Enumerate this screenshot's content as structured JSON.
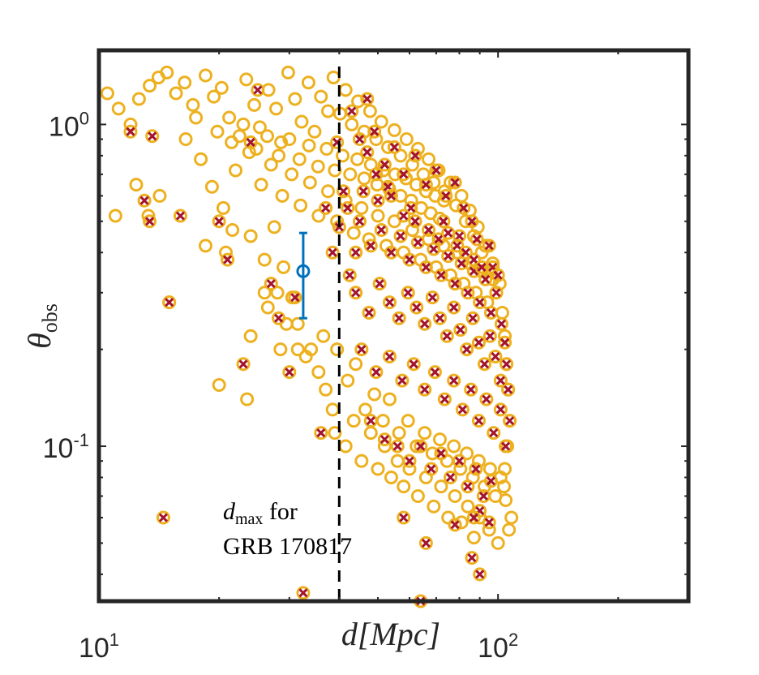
{
  "chart_data": {
    "type": "scatter",
    "xscale": "log",
    "yscale": "log",
    "xlim": [
      10,
      300
    ],
    "ylim": [
      0.033,
      1.7
    ],
    "x_ticks": [
      {
        "value": 10,
        "base": "10",
        "exp": "1"
      },
      {
        "value": 100,
        "base": "10",
        "exp": "2"
      }
    ],
    "y_ticks": [
      {
        "value": 0.1,
        "base": "10",
        "exp": "-1"
      },
      {
        "value": 1,
        "base": "10",
        "exp": "0"
      }
    ],
    "xlabel": "d[Mpc]",
    "ylabel": {
      "main": "θ",
      "sub": "obs"
    },
    "dmax_line": 40,
    "annotation": {
      "line1_var": "d",
      "line1_sub": "max",
      "line1_rest": " for",
      "line2": "GRB 170817"
    },
    "observed_point": {
      "x": 32.5,
      "y": 0.35,
      "ylow": 0.25,
      "yhigh": 0.46
    },
    "series": [
      {
        "name": "all simulated events",
        "marker": "open-circle",
        "color": "#EDB120"
      },
      {
        "name": "detected events",
        "marker": "x",
        "color": "#A2142F"
      }
    ],
    "open_points": [
      [
        10.5,
        1.25
      ],
      [
        11.2,
        1.12
      ],
      [
        12.0,
        1.0
      ],
      [
        12.6,
        1.2
      ],
      [
        13.4,
        1.32
      ],
      [
        14.1,
        1.4
      ],
      [
        14.8,
        1.45
      ],
      [
        15.6,
        1.25
      ],
      [
        16.4,
        1.35
      ],
      [
        17.2,
        1.15
      ],
      [
        18.5,
        1.42
      ],
      [
        19.4,
        1.22
      ],
      [
        20.3,
        1.3
      ],
      [
        21.2,
        1.05
      ],
      [
        22.5,
        0.92
      ],
      [
        23.4,
        1.38
      ],
      [
        24.5,
        1.15
      ],
      [
        25.3,
        0.98
      ],
      [
        26.6,
        1.28
      ],
      [
        27.8,
        1.12
      ],
      [
        28.6,
        0.88
      ],
      [
        29.8,
        1.45
      ],
      [
        31.0,
        1.2
      ],
      [
        32.2,
        1.02
      ],
      [
        33.5,
        1.35
      ],
      [
        34.7,
        0.95
      ],
      [
        36.0,
        1.22
      ],
      [
        37.5,
        1.1
      ],
      [
        38.7,
        1.4
      ],
      [
        40.2,
        1.08
      ],
      [
        41.5,
        1.28
      ],
      [
        43.0,
        1.0
      ],
      [
        44.6,
        1.18
      ],
      [
        46.2,
        0.95
      ],
      [
        47.8,
        1.1
      ],
      [
        49.5,
        0.9
      ],
      [
        51.0,
        1.02
      ],
      [
        53.0,
        0.85
      ],
      [
        55.0,
        0.96
      ],
      [
        57.0,
        0.8
      ],
      [
        59.0,
        0.9
      ],
      [
        61.0,
        0.75
      ],
      [
        63.0,
        0.84
      ],
      [
        65.0,
        0.7
      ],
      [
        67.0,
        0.78
      ],
      [
        69.0,
        0.66
      ],
      [
        71.0,
        0.72
      ],
      [
        73.5,
        0.62
      ],
      [
        76.0,
        0.66
      ],
      [
        78.5,
        0.56
      ],
      [
        81.0,
        0.6
      ],
      [
        83.0,
        0.5
      ],
      [
        85.0,
        0.54
      ],
      [
        87.0,
        0.45
      ],
      [
        89.0,
        0.48
      ],
      [
        91.0,
        0.4
      ],
      [
        93.0,
        0.42
      ],
      [
        95.0,
        0.35
      ],
      [
        97.0,
        0.37
      ],
      [
        99.0,
        0.3
      ],
      [
        101.0,
        0.32
      ],
      [
        102.5,
        0.26
      ],
      [
        104.0,
        0.22
      ],
      [
        105.0,
        0.18
      ],
      [
        106.0,
        0.15
      ],
      [
        107.0,
        0.12
      ],
      [
        105.5,
        0.1
      ],
      [
        104.0,
        0.085
      ],
      [
        103.5,
        0.075
      ],
      [
        104.5,
        0.068
      ],
      [
        106.5,
        0.055
      ],
      [
        108.0,
        0.06
      ],
      [
        22.0,
        0.72
      ],
      [
        23.8,
        0.82
      ],
      [
        25.5,
        0.65
      ],
      [
        27.0,
        0.75
      ],
      [
        28.8,
        0.6
      ],
      [
        30.4,
        0.7
      ],
      [
        32.0,
        0.56
      ],
      [
        33.8,
        0.66
      ],
      [
        35.5,
        0.52
      ],
      [
        37.5,
        0.62
      ],
      [
        39.5,
        0.5
      ],
      [
        41.5,
        0.58
      ],
      [
        43.5,
        0.46
      ],
      [
        45.5,
        0.55
      ],
      [
        47.5,
        0.44
      ],
      [
        50.0,
        0.52
      ],
      [
        52.5,
        0.42
      ],
      [
        55.0,
        0.5
      ],
      [
        58.0,
        0.4
      ],
      [
        61.0,
        0.47
      ],
      [
        64.0,
        0.38
      ],
      [
        67.0,
        0.44
      ],
      [
        70.0,
        0.36
      ],
      [
        73.0,
        0.42
      ],
      [
        76.0,
        0.34
      ],
      [
        79.0,
        0.4
      ],
      [
        82.0,
        0.32
      ],
      [
        85.0,
        0.37
      ],
      [
        88.0,
        0.3
      ],
      [
        91.0,
        0.35
      ],
      [
        94.0,
        0.28
      ],
      [
        97.0,
        0.33
      ],
      [
        16.5,
        0.9
      ],
      [
        18.0,
        0.78
      ],
      [
        19.2,
        0.64
      ],
      [
        20.5,
        0.55
      ],
      [
        21.6,
        0.47
      ],
      [
        14.2,
        0.6
      ],
      [
        13.3,
        0.52
      ],
      [
        12.4,
        0.65
      ],
      [
        11.0,
        0.52
      ],
      [
        18.5,
        0.42
      ],
      [
        20.8,
        0.4
      ],
      [
        24.0,
        0.45
      ],
      [
        26.0,
        0.38
      ],
      [
        27.5,
        0.48
      ],
      [
        29.0,
        0.36
      ],
      [
        30.5,
        0.29
      ],
      [
        28.0,
        0.3
      ],
      [
        26.5,
        0.27
      ],
      [
        29.5,
        0.24
      ],
      [
        31.5,
        0.2
      ],
      [
        33.0,
        0.19
      ],
      [
        35.5,
        0.17
      ],
      [
        37.0,
        0.15
      ],
      [
        38.5,
        0.13
      ],
      [
        39.0,
        0.11
      ],
      [
        41.5,
        0.1
      ],
      [
        43.5,
        0.12
      ],
      [
        45.5,
        0.09
      ],
      [
        48.0,
        0.11
      ],
      [
        50.0,
        0.085
      ],
      [
        52.0,
        0.1
      ],
      [
        54.0,
        0.08
      ],
      [
        56.0,
        0.09
      ],
      [
        58.0,
        0.075
      ],
      [
        60.0,
        0.085
      ],
      [
        63.0,
        0.07
      ],
      [
        66.0,
        0.08
      ],
      [
        69.0,
        0.065
      ],
      [
        72.0,
        0.075
      ],
      [
        75.0,
        0.06
      ],
      [
        78.0,
        0.07
      ],
      [
        81.0,
        0.058
      ],
      [
        84.0,
        0.065
      ],
      [
        87.0,
        0.052
      ],
      [
        90.0,
        0.06
      ],
      [
        95.0,
        0.055
      ],
      [
        100.0,
        0.05
      ],
      [
        15.0,
        0.28
      ],
      [
        20.0,
        0.155
      ],
      [
        24.0,
        0.22
      ],
      [
        23.5,
        0.14
      ],
      [
        26.0,
        0.3
      ],
      [
        28.5,
        0.2
      ],
      [
        31.5,
        0.24
      ],
      [
        34.0,
        0.2
      ],
      [
        36.5,
        0.22
      ],
      [
        39.5,
        0.2
      ],
      [
        42.0,
        0.16
      ],
      [
        44.0,
        0.18
      ],
      [
        46.5,
        0.13
      ],
      [
        49.0,
        0.145
      ],
      [
        51.5,
        0.12
      ],
      [
        53.5,
        0.14
      ],
      [
        56.5,
        0.11
      ],
      [
        59.5,
        0.12
      ],
      [
        62.5,
        0.1
      ],
      [
        65.5,
        0.11
      ],
      [
        68.5,
        0.095
      ],
      [
        71.5,
        0.105
      ],
      [
        74.5,
        0.09
      ],
      [
        77.5,
        0.1
      ],
      [
        80.5,
        0.085
      ],
      [
        83.5,
        0.095
      ],
      [
        86.5,
        0.08
      ],
      [
        89.5,
        0.09
      ],
      [
        92.5,
        0.075
      ],
      [
        95.5,
        0.085
      ],
      [
        98.5,
        0.07
      ],
      [
        101.5,
        0.08
      ],
      [
        17.5,
        1.05
      ],
      [
        19.8,
        0.95
      ],
      [
        21.5,
        0.88
      ],
      [
        23.0,
        1.0
      ],
      [
        24.8,
        0.84
      ],
      [
        26.4,
        0.92
      ],
      [
        28.2,
        0.8
      ],
      [
        30.0,
        0.9
      ],
      [
        31.8,
        0.78
      ],
      [
        33.6,
        0.86
      ],
      [
        35.4,
        0.74
      ],
      [
        37.2,
        0.84
      ],
      [
        39.0,
        0.72
      ],
      [
        40.8,
        0.8
      ],
      [
        42.6,
        0.7
      ],
      [
        44.4,
        0.78
      ],
      [
        46.2,
        0.68
      ],
      [
        48.0,
        0.75
      ],
      [
        49.8,
        0.65
      ],
      [
        51.6,
        0.72
      ],
      [
        53.4,
        0.63
      ],
      [
        55.2,
        0.7
      ],
      [
        57.0,
        0.6
      ],
      [
        58.8,
        0.68
      ],
      [
        60.6,
        0.58
      ],
      [
        62.4,
        0.65
      ],
      [
        64.2,
        0.55
      ],
      [
        66.0,
        0.62
      ],
      [
        67.8,
        0.53
      ],
      [
        69.6,
        0.6
      ],
      [
        71.4,
        0.51
      ],
      [
        73.2,
        0.58
      ]
    ],
    "x_points": [
      [
        12.0,
        0.95
      ],
      [
        13.0,
        0.58
      ],
      [
        13.4,
        0.5
      ],
      [
        13.6,
        0.92
      ],
      [
        15.0,
        0.28
      ],
      [
        16.0,
        0.52
      ],
      [
        20.0,
        0.5
      ],
      [
        21.0,
        0.38
      ],
      [
        23.0,
        0.18
      ],
      [
        24.0,
        0.88
      ],
      [
        25.0,
        1.28
      ],
      [
        27.0,
        0.32
      ],
      [
        28.2,
        0.25
      ],
      [
        30.0,
        0.17
      ],
      [
        31.0,
        0.29
      ],
      [
        32.5,
        0.035
      ],
      [
        36.0,
        0.11
      ],
      [
        14.5,
        0.06
      ],
      [
        43.0,
        1.1
      ],
      [
        45.0,
        0.9
      ],
      [
        47.0,
        1.2
      ],
      [
        49.0,
        0.95
      ],
      [
        52.0,
        0.75
      ],
      [
        55.0,
        0.85
      ],
      [
        58.0,
        0.7
      ],
      [
        62.0,
        0.8
      ],
      [
        66.0,
        0.65
      ],
      [
        70.0,
        0.72
      ],
      [
        74.0,
        0.6
      ],
      [
        78.0,
        0.66
      ],
      [
        82.0,
        0.55
      ],
      [
        86.0,
        0.5
      ],
      [
        45.0,
        0.5
      ],
      [
        48.0,
        0.42
      ],
      [
        51.0,
        0.47
      ],
      [
        54.0,
        0.4
      ],
      [
        57.0,
        0.45
      ],
      [
        60.0,
        0.38
      ],
      [
        63.0,
        0.43
      ],
      [
        66.0,
        0.36
      ],
      [
        69.0,
        0.41
      ],
      [
        72.0,
        0.34
      ],
      [
        75.0,
        0.39
      ],
      [
        78.0,
        0.32
      ],
      [
        81.0,
        0.37
      ],
      [
        84.0,
        0.3
      ],
      [
        87.0,
        0.35
      ],
      [
        90.0,
        0.28
      ],
      [
        93.0,
        0.33
      ],
      [
        96.0,
        0.26
      ],
      [
        99.0,
        0.3
      ],
      [
        102.0,
        0.24
      ],
      [
        104.0,
        0.21
      ],
      [
        105.0,
        0.18
      ],
      [
        106.0,
        0.15
      ],
      [
        107.0,
        0.12
      ],
      [
        44.0,
        0.3
      ],
      [
        47.5,
        0.26
      ],
      [
        50.5,
        0.32
      ],
      [
        53.5,
        0.28
      ],
      [
        56.5,
        0.25
      ],
      [
        59.5,
        0.3
      ],
      [
        62.5,
        0.27
      ],
      [
        65.5,
        0.24
      ],
      [
        68.5,
        0.29
      ],
      [
        71.5,
        0.25
      ],
      [
        74.5,
        0.22
      ],
      [
        77.5,
        0.27
      ],
      [
        80.5,
        0.23
      ],
      [
        83.5,
        0.2
      ],
      [
        86.5,
        0.25
      ],
      [
        89.5,
        0.21
      ],
      [
        92.5,
        0.18
      ],
      [
        95.5,
        0.22
      ],
      [
        98.5,
        0.19
      ],
      [
        101.5,
        0.16
      ],
      [
        45.5,
        0.2
      ],
      [
        49.5,
        0.17
      ],
      [
        53.5,
        0.19
      ],
      [
        57.5,
        0.16
      ],
      [
        61.5,
        0.18
      ],
      [
        65.5,
        0.15
      ],
      [
        69.5,
        0.17
      ],
      [
        73.5,
        0.14
      ],
      [
        77.5,
        0.16
      ],
      [
        81.5,
        0.13
      ],
      [
        85.5,
        0.15
      ],
      [
        89.5,
        0.12
      ],
      [
        93.5,
        0.14
      ],
      [
        97.5,
        0.11
      ],
      [
        101.5,
        0.13
      ],
      [
        104.5,
        0.1
      ],
      [
        48.0,
        0.12
      ],
      [
        52.0,
        0.105
      ],
      [
        56.0,
        0.1
      ],
      [
        60.0,
        0.09
      ],
      [
        64.0,
        0.1
      ],
      [
        68.0,
        0.085
      ],
      [
        72.0,
        0.095
      ],
      [
        76.0,
        0.08
      ],
      [
        80.0,
        0.09
      ],
      [
        84.0,
        0.075
      ],
      [
        88.0,
        0.085
      ],
      [
        92.0,
        0.07
      ],
      [
        96.0,
        0.078
      ],
      [
        90.0,
        0.063
      ],
      [
        95.0,
        0.058
      ],
      [
        87.0,
        0.06
      ],
      [
        58.0,
        0.06
      ],
      [
        66.0,
        0.05
      ],
      [
        90.0,
        0.04
      ],
      [
        64.0,
        0.033
      ],
      [
        78.0,
        0.057
      ],
      [
        86.0,
        0.045
      ],
      [
        42.0,
        0.55
      ],
      [
        44.0,
        0.4
      ],
      [
        40.0,
        0.48
      ],
      [
        42.5,
        0.34
      ],
      [
        41.0,
        0.62
      ],
      [
        39.5,
        0.88
      ],
      [
        37.0,
        0.55
      ],
      [
        38.5,
        0.4
      ],
      [
        46.0,
        0.62
      ],
      [
        50.0,
        0.58
      ],
      [
        53.0,
        0.64
      ],
      [
        60.5,
        0.55
      ],
      [
        73.0,
        0.5
      ],
      [
        80.0,
        0.45
      ],
      [
        88.5,
        0.44
      ],
      [
        95.0,
        0.42
      ],
      [
        97.0,
        0.36
      ],
      [
        100.0,
        0.34
      ],
      [
        47.0,
        0.82
      ],
      [
        49.5,
        0.7
      ],
      [
        54.0,
        0.6
      ],
      [
        58.0,
        0.52
      ],
      [
        62.0,
        0.5
      ],
      [
        67.0,
        0.47
      ],
      [
        71.0,
        0.44
      ],
      [
        75.0,
        0.46
      ],
      [
        79.0,
        0.42
      ],
      [
        83.0,
        0.4
      ],
      [
        87.0,
        0.38
      ],
      [
        91.0,
        0.36
      ]
    ]
  }
}
